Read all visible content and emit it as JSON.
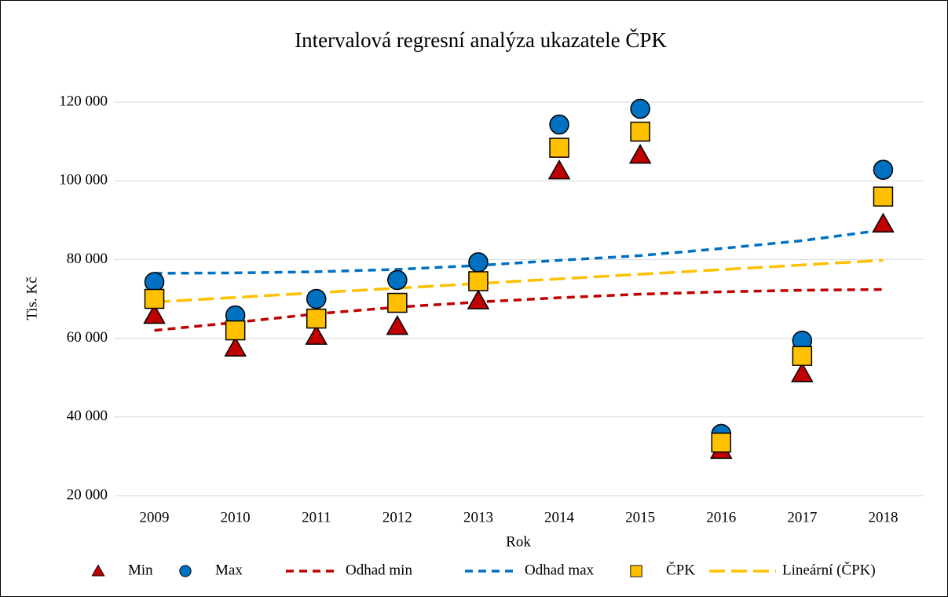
{
  "chart_data": {
    "type": "scatter",
    "title": "Intervalová regresní analýza ukazatele ČPK",
    "x_label": "Rok",
    "y_label": "Tis. Kč",
    "categories": [
      "2009",
      "2010",
      "2011",
      "2012",
      "2013",
      "2014",
      "2015",
      "2016",
      "2017",
      "2018"
    ],
    "ylim": [
      20000,
      120000
    ],
    "yticks": [
      {
        "value": 20000,
        "label": "20 000"
      },
      {
        "value": 40000,
        "label": "40 000"
      },
      {
        "value": 60000,
        "label": "60 000"
      },
      {
        "value": 80000,
        "label": "80 000"
      },
      {
        "value": 100000,
        "label": "100 000"
      },
      {
        "value": 120000,
        "label": "120 000"
      }
    ],
    "grid": true,
    "legend": "bottom",
    "series": [
      {
        "name": "Min",
        "color": "#c00000",
        "marker": "triangle",
        "values": [
          65800,
          57500,
          60500,
          63000,
          69500,
          102500,
          106500,
          31500,
          51000,
          89000
        ]
      },
      {
        "name": "Max",
        "color": "#0070c0",
        "marker": "circle",
        "values": [
          74300,
          65800,
          70000,
          74800,
          79300,
          114300,
          118300,
          35700,
          59400,
          102800
        ]
      },
      {
        "name": "Odhad min",
        "color": "#c00000",
        "dash": "10,7",
        "values": [
          62000,
          64000,
          66200,
          67900,
          69200,
          70300,
          71200,
          71800,
          72200,
          72400
        ]
      },
      {
        "name": "Odhad max",
        "color": "#0070c0",
        "dash": "10,7",
        "values": [
          76500,
          76600,
          76900,
          77500,
          78500,
          79800,
          81000,
          82800,
          84800,
          87500
        ]
      },
      {
        "name": "ČPK",
        "color": "#ffc000",
        "marker": "square",
        "values": [
          70000,
          62000,
          65000,
          69000,
          74500,
          108400,
          112500,
          33500,
          55500,
          96000
        ]
      },
      {
        "name": "Lineární (ČPK)",
        "color": "#ffc000",
        "dash": "20,8",
        "values": [
          69200,
          70380,
          71560,
          72730,
          73910,
          75090,
          76270,
          77440,
          78620,
          79800
        ]
      }
    ]
  }
}
